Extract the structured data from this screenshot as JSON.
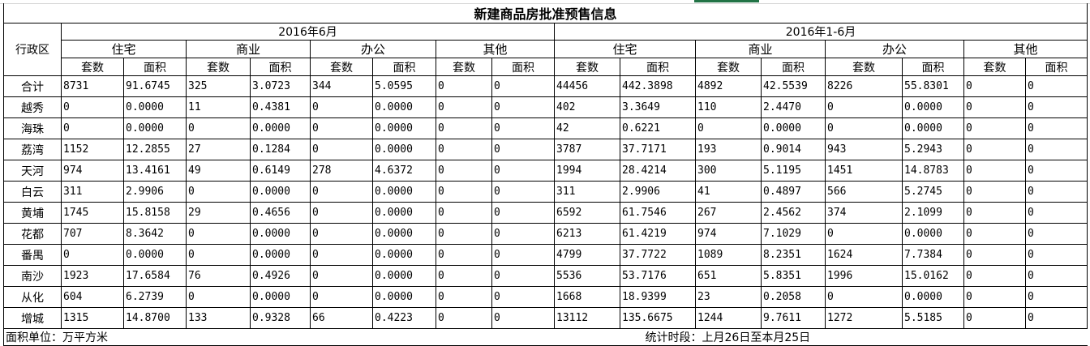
{
  "title": "新建商品房批准预售信息",
  "district_header": "行政区",
  "periods": [
    "2016年6月",
    "2016年1-6月"
  ],
  "categories": [
    "住宅",
    "商业",
    "办公",
    "其他"
  ],
  "sub_headers": [
    "套数",
    "面积"
  ],
  "rows": [
    {
      "district": "合计",
      "values": [
        "8731",
        "91.6745",
        "325",
        "3.0723",
        "344",
        "5.0595",
        "0",
        "0",
        "44456",
        "442.3898",
        "4892",
        "42.5539",
        "8226",
        "55.8301",
        "0",
        "0"
      ]
    },
    {
      "district": "越秀",
      "values": [
        "0",
        "0.0000",
        "11",
        "0.4381",
        "0",
        "0.0000",
        "0",
        "0",
        "402",
        "3.3649",
        "110",
        "2.4470",
        "0",
        "0.0000",
        "0",
        "0"
      ]
    },
    {
      "district": "海珠",
      "values": [
        "0",
        "0.0000",
        "0",
        "0.0000",
        "0",
        "0.0000",
        "0",
        "0",
        "42",
        "0.6221",
        "0",
        "0.0000",
        "0",
        "0.0000",
        "0",
        "0"
      ]
    },
    {
      "district": "荔湾",
      "values": [
        "1152",
        "12.2855",
        "27",
        "0.1284",
        "0",
        "0.0000",
        "0",
        "0",
        "3787",
        "37.7171",
        "193",
        "0.9014",
        "943",
        "5.2943",
        "0",
        "0"
      ]
    },
    {
      "district": "天河",
      "values": [
        "974",
        "13.4161",
        "49",
        "0.6149",
        "278",
        "4.6372",
        "0",
        "0",
        "1994",
        "28.4214",
        "300",
        "5.1195",
        "1451",
        "14.8783",
        "0",
        "0"
      ]
    },
    {
      "district": "白云",
      "values": [
        "311",
        "2.9906",
        "0",
        "0.0000",
        "0",
        "0.0000",
        "0",
        "0",
        "311",
        "2.9906",
        "41",
        "0.4897",
        "566",
        "5.2745",
        "0",
        "0"
      ]
    },
    {
      "district": "黄埔",
      "values": [
        "1745",
        "15.8158",
        "29",
        "0.4656",
        "0",
        "0.0000",
        "0",
        "0",
        "6592",
        "61.7546",
        "267",
        "2.4562",
        "374",
        "2.1099",
        "0",
        "0"
      ]
    },
    {
      "district": "花都",
      "values": [
        "707",
        "8.3642",
        "0",
        "0.0000",
        "0",
        "0.0000",
        "0",
        "0",
        "6213",
        "61.4219",
        "974",
        "7.1029",
        "0",
        "0.0000",
        "0",
        "0"
      ]
    },
    {
      "district": "番禺",
      "values": [
        "0",
        "0.0000",
        "0",
        "0.0000",
        "0",
        "0.0000",
        "0",
        "0",
        "4799",
        "37.7722",
        "1089",
        "8.2351",
        "1624",
        "7.7384",
        "0",
        "0"
      ]
    },
    {
      "district": "南沙",
      "values": [
        "1923",
        "17.6584",
        "76",
        "0.4926",
        "0",
        "0.0000",
        "0",
        "0",
        "5536",
        "53.7176",
        "651",
        "5.8351",
        "1996",
        "15.0162",
        "0",
        "0"
      ]
    },
    {
      "district": "从化",
      "values": [
        "604",
        "6.2739",
        "0",
        "0.0000",
        "0",
        "0.0000",
        "0",
        "0",
        "1668",
        "18.9399",
        "23",
        "0.2058",
        "0",
        "0.0000",
        "0",
        "0"
      ]
    },
    {
      "district": "增城",
      "values": [
        "1315",
        "14.8700",
        "133",
        "0.9328",
        "66",
        "0.4223",
        "0",
        "0",
        "13112",
        "135.6675",
        "1244",
        "9.7611",
        "1272",
        "5.5185",
        "0",
        "0"
      ]
    }
  ],
  "footer": {
    "unit_note": "面积单位：万平方米",
    "period_note": "统计时段：上月26日至本月25日"
  }
}
